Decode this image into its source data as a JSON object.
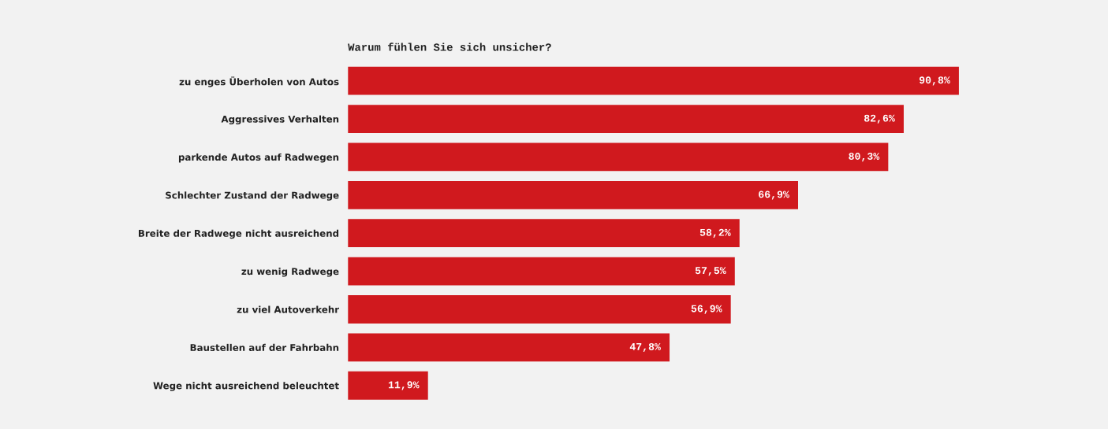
{
  "chart_data": {
    "type": "bar",
    "orientation": "horizontal",
    "title": "Warum fühlen Sie sich unsicher?",
    "categories": [
      "zu enges Überholen von Autos",
      "Aggressives Verhalten",
      "parkende Autos auf Radwegen",
      "Schlechter Zustand der Radwege",
      "Breite der Radwege nicht ausreichend",
      "zu wenig Radwege",
      "zu viel Autoverkehr",
      "Baustellen auf der Fahrbahn",
      "Wege nicht ausreichend beleuchtet"
    ],
    "values": [
      90.8,
      82.6,
      80.3,
      66.9,
      58.2,
      57.5,
      56.9,
      47.8,
      11.9
    ],
    "value_labels": [
      "90,8%",
      "82,6%",
      "80,3%",
      "66,9%",
      "58,2%",
      "57,5%",
      "56,9%",
      "47,8%",
      "11,9%"
    ],
    "color": "#d0191e",
    "tick_labels": "y",
    "grid": false,
    "legend": false
  }
}
